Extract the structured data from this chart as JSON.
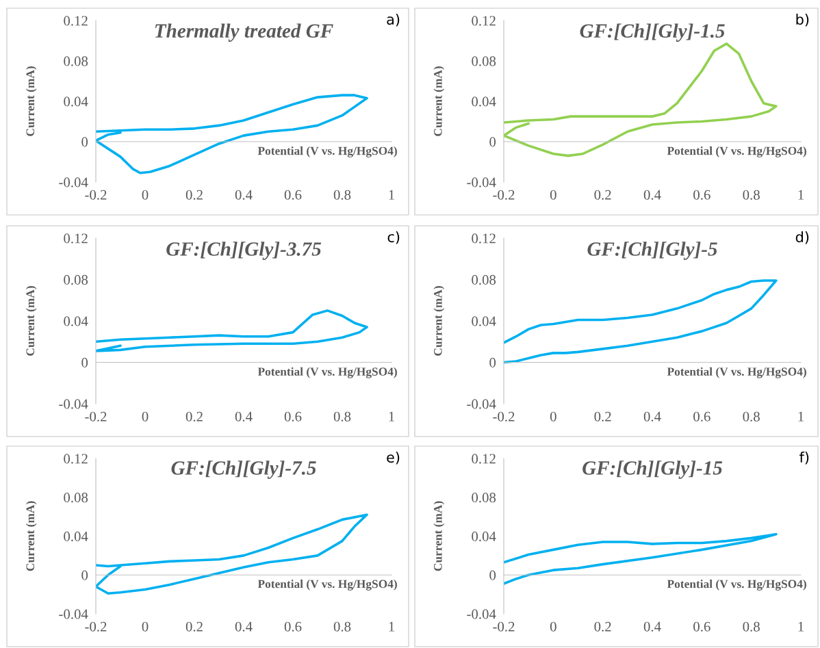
{
  "chart_data": [
    {
      "type": "line",
      "title": "Thermally treated GF",
      "xlabel": "Potential (V vs. Hg/HgSO4)",
      "ylabel": "Current (mA)",
      "annotations": [
        "a)"
      ],
      "xlim": [
        -0.2,
        1
      ],
      "ylim": [
        -0.04,
        0.12
      ],
      "xticks": [
        -0.2,
        0,
        0.2,
        0.4,
        0.6,
        0.8,
        1
      ],
      "yticks": [
        -0.04,
        0,
        0.04,
        0.08,
        0.12
      ],
      "series": [
        {
          "color": "#00b0f0",
          "x": [
            -0.1,
            -0.15,
            -0.2,
            -0.1,
            -0.05,
            -0.02,
            0.02,
            0.1,
            0.2,
            0.3,
            0.4,
            0.5,
            0.6,
            0.7,
            0.8,
            0.9,
            0.85,
            0.8,
            0.7,
            0.6,
            0.5,
            0.4,
            0.3,
            0.2,
            0.1,
            0,
            -0.1,
            -0.2
          ],
          "values": [
            0.009,
            0.007,
            0.001,
            -0.015,
            -0.027,
            -0.031,
            -0.03,
            -0.024,
            -0.013,
            -0.002,
            0.006,
            0.01,
            0.012,
            0.016,
            0.026,
            0.043,
            0.046,
            0.046,
            0.044,
            0.037,
            0.029,
            0.021,
            0.016,
            0.013,
            0.012,
            0.012,
            0.011,
            0.01
          ]
        }
      ]
    },
    {
      "type": "line",
      "title": "GF:[Ch][Gly]-1.5",
      "xlabel": "Potential (V vs. Hg/HgSO4)",
      "ylabel": "Current (mA)",
      "annotations": [
        "b)"
      ],
      "xlim": [
        -0.2,
        1
      ],
      "ylim": [
        -0.04,
        0.12
      ],
      "xticks": [
        -0.2,
        0,
        0.2,
        0.4,
        0.6,
        0.8,
        1
      ],
      "yticks": [
        -0.04,
        0,
        0.04,
        0.08,
        0.12
      ],
      "series": [
        {
          "color": "#92d050",
          "x": [
            -0.1,
            -0.15,
            -0.2,
            -0.1,
            0,
            0.06,
            0.12,
            0.2,
            0.3,
            0.4,
            0.5,
            0.6,
            0.7,
            0.8,
            0.87,
            0.9,
            0.85,
            0.8,
            0.75,
            0.7,
            0.65,
            0.6,
            0.5,
            0.45,
            0.4,
            0.3,
            0.2,
            0.1,
            0.07,
            0,
            -0.1,
            -0.2
          ],
          "values": [
            0.018,
            0.014,
            0.006,
            -0.004,
            -0.012,
            -0.014,
            -0.012,
            -0.003,
            0.01,
            0.017,
            0.019,
            0.02,
            0.022,
            0.025,
            0.03,
            0.035,
            0.038,
            0.06,
            0.087,
            0.097,
            0.09,
            0.07,
            0.038,
            0.028,
            0.025,
            0.025,
            0.025,
            0.025,
            0.025,
            0.022,
            0.021,
            0.019
          ]
        }
      ]
    },
    {
      "type": "line",
      "title": "GF:[Ch][Gly]-3.75",
      "xlabel": "Potential (V vs. Hg/HgSO4)",
      "ylabel": "Current (mA)",
      "annotations": [
        "c)"
      ],
      "xlim": [
        -0.2,
        1
      ],
      "ylim": [
        -0.04,
        0.12
      ],
      "xticks": [
        -0.2,
        0,
        0.2,
        0.4,
        0.6,
        0.8,
        1
      ],
      "yticks": [
        -0.04,
        0,
        0.04,
        0.08,
        0.12
      ],
      "series": [
        {
          "color": "#00b0f0",
          "x": [
            -0.1,
            -0.2,
            -0.1,
            0,
            0.2,
            0.4,
            0.6,
            0.7,
            0.8,
            0.87,
            0.9,
            0.85,
            0.8,
            0.74,
            0.68,
            0.6,
            0.5,
            0.4,
            0.3,
            0.2,
            0.1,
            0,
            -0.1,
            -0.2
          ],
          "values": [
            0.016,
            0.011,
            0.012,
            0.015,
            0.017,
            0.018,
            0.018,
            0.02,
            0.024,
            0.029,
            0.034,
            0.038,
            0.045,
            0.05,
            0.046,
            0.029,
            0.025,
            0.025,
            0.026,
            0.025,
            0.024,
            0.023,
            0.022,
            0.02
          ]
        }
      ]
    },
    {
      "type": "line",
      "title": "GF:[Ch][Gly]-5",
      "xlabel": "Potential (V vs. Hg/HgSO4)",
      "ylabel": "Current (mA)",
      "annotations": [
        "d)"
      ],
      "xlim": [
        -0.2,
        1
      ],
      "ylim": [
        -0.04,
        0.12
      ],
      "xticks": [
        -0.2,
        0,
        0.2,
        0.4,
        0.6,
        0.8,
        1
      ],
      "yticks": [
        -0.04,
        0,
        0.04,
        0.08,
        0.12
      ],
      "series": [
        {
          "color": "#00b0f0",
          "x": [
            -0.2,
            -0.15,
            -0.1,
            -0.05,
            0,
            0.05,
            0.1,
            0.2,
            0.3,
            0.4,
            0.5,
            0.6,
            0.7,
            0.75,
            0.8,
            0.85,
            0.9,
            0.85,
            0.8,
            0.75,
            0.7,
            0.65,
            0.6,
            0.5,
            0.4,
            0.3,
            0.2,
            0.1,
            0,
            -0.05,
            -0.1,
            -0.15,
            -0.2
          ],
          "values": [
            0.0,
            0.001,
            0.004,
            0.007,
            0.009,
            0.009,
            0.01,
            0.013,
            0.016,
            0.02,
            0.024,
            0.03,
            0.038,
            0.045,
            0.052,
            0.065,
            0.079,
            0.079,
            0.078,
            0.073,
            0.07,
            0.066,
            0.06,
            0.052,
            0.046,
            0.043,
            0.041,
            0.041,
            0.037,
            0.036,
            0.032,
            0.025,
            0.019
          ]
        }
      ]
    },
    {
      "type": "line",
      "title": "GF:[Ch][Gly]-7.5",
      "xlabel": "Potential (V vs. Hg/HgSO4)",
      "ylabel": "Current (mA)",
      "annotations": [
        "e)"
      ],
      "xlim": [
        -0.2,
        1
      ],
      "ylim": [
        -0.04,
        0.12
      ],
      "xticks": [
        -0.2,
        0,
        0.2,
        0.4,
        0.6,
        0.8,
        1
      ],
      "yticks": [
        -0.04,
        0,
        0.04,
        0.08,
        0.12
      ],
      "series": [
        {
          "color": "#00b0f0",
          "x": [
            -0.2,
            -0.15,
            -0.1,
            0,
            0.1,
            0.2,
            0.3,
            0.4,
            0.5,
            0.6,
            0.7,
            0.8,
            0.9,
            0.85,
            0.8,
            0.7,
            0.6,
            0.5,
            0.4,
            0.3,
            0.2,
            0.1,
            0,
            -0.1,
            -0.15,
            -0.2,
            -0.15,
            -0.1
          ],
          "values": [
            0.01,
            0.009,
            0.01,
            0.012,
            0.014,
            0.015,
            0.016,
            0.02,
            0.028,
            0.038,
            0.047,
            0.057,
            0.062,
            0.05,
            0.035,
            0.02,
            0.016,
            0.013,
            0.008,
            0.002,
            -0.004,
            -0.01,
            -0.015,
            -0.018,
            -0.019,
            -0.012,
            0.0,
            0.009
          ]
        }
      ]
    },
    {
      "type": "line",
      "title": "GF:[Ch][Gly]-15",
      "xlabel": "Potential (V vs. Hg/HgSO4)",
      "ylabel": "Current (mA)",
      "annotations": [
        "f)"
      ],
      "xlim": [
        -0.2,
        1
      ],
      "ylim": [
        -0.04,
        0.12
      ],
      "xticks": [
        -0.2,
        0,
        0.2,
        0.4,
        0.6,
        0.8,
        1
      ],
      "yticks": [
        -0.04,
        0,
        0.04,
        0.08,
        0.12
      ],
      "series": [
        {
          "color": "#00b0f0",
          "x": [
            -0.2,
            -0.15,
            -0.1,
            0,
            0.1,
            0.2,
            0.4,
            0.6,
            0.8,
            0.9,
            0.8,
            0.7,
            0.6,
            0.5,
            0.4,
            0.3,
            0.2,
            0.1,
            0,
            -0.1,
            -0.2
          ],
          "values": [
            -0.009,
            -0.004,
            0.0,
            0.005,
            0.007,
            0.011,
            0.018,
            0.026,
            0.035,
            0.042,
            0.038,
            0.035,
            0.033,
            0.033,
            0.032,
            0.034,
            0.034,
            0.031,
            0.026,
            0.021,
            0.013
          ]
        }
      ]
    }
  ]
}
